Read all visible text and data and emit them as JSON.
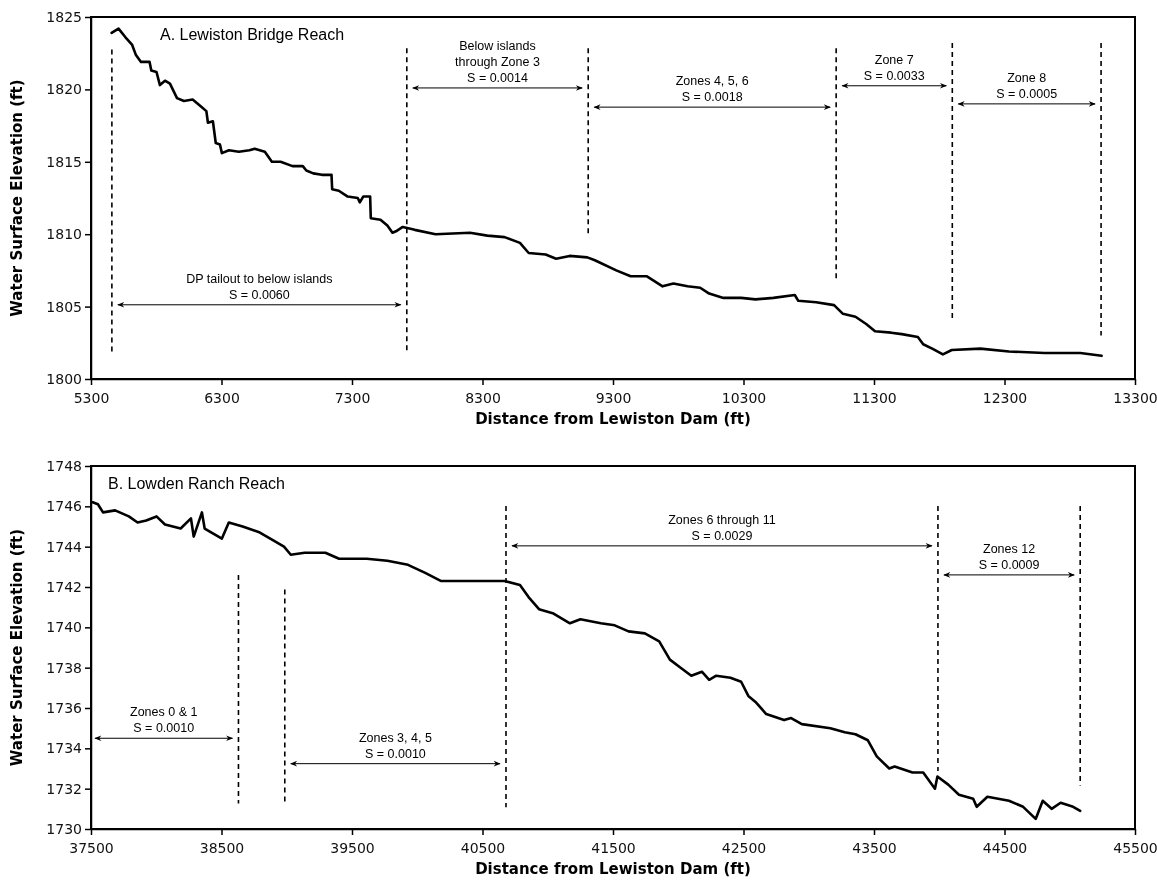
{
  "chart_data": [
    {
      "type": "line",
      "title": "A. Lewiston Bridge Reach",
      "xlabel": "Distance from Lewiston Dam (ft)",
      "ylabel": "Water Surface Elevation (ft)",
      "xlim": [
        5300,
        13300
      ],
      "xticks": [
        5300,
        6300,
        7300,
        8300,
        9300,
        10300,
        11300,
        12300,
        13300
      ],
      "ylim": [
        1800,
        1825
      ],
      "yticks": [
        1800,
        1805,
        1810,
        1815,
        1820,
        1825
      ],
      "grid": false,
      "marker": "none",
      "line_style": "solid",
      "series": [
        {
          "color": "#000000",
          "x": [
            5458,
            5511,
            5564,
            5614,
            5643,
            5683,
            5749,
            5762,
            5802,
            5828,
            5867,
            5905,
            5959,
            6012,
            6079,
            6145,
            6184,
            6196,
            6234,
            6256,
            6288,
            6303,
            6357,
            6433,
            6514,
            6554,
            6632,
            6686,
            6753,
            6844,
            6923,
            6950,
            7003,
            7069,
            7143,
            7148,
            7199,
            7267,
            7344,
            7360,
            7386,
            7439,
            7444,
            7518,
            7571,
            7610,
            7637,
            7689,
            7781,
            7940,
            8204,
            8337,
            8469,
            8587,
            8654,
            8784,
            8864,
            8968,
            9103,
            9161,
            9325,
            9435,
            9557,
            9680,
            9763,
            9871,
            9968,
            10037,
            10146,
            10282,
            10392,
            10529,
            10693,
            10720,
            10857,
            10994,
            11062,
            11158,
            11240,
            11308,
            11431,
            11513,
            11636,
            11677,
            11746,
            11828,
            11896,
            12115,
            12334,
            12607,
            12881,
            13044
          ],
          "values": [
            1823.9,
            1824.2,
            1823.6,
            1823.1,
            1822.4,
            1821.9,
            1821.9,
            1821.3,
            1821.2,
            1820.3,
            1820.6,
            1820.4,
            1819.4,
            1819.2,
            1819.3,
            1818.8,
            1818.5,
            1817.7,
            1817.8,
            1816.3,
            1816.2,
            1815.6,
            1815.8,
            1815.7,
            1815.8,
            1815.9,
            1815.7,
            1815.0,
            1815.0,
            1814.7,
            1814.7,
            1814.4,
            1814.2,
            1814.1,
            1814.1,
            1813.1,
            1813.0,
            1812.6,
            1812.5,
            1812.2,
            1812.6,
            1812.6,
            1811.1,
            1811.0,
            1810.6,
            1810.1,
            1810.2,
            1810.5,
            1810.3,
            1810.0,
            1810.1,
            1809.9,
            1809.8,
            1809.4,
            1808.7,
            1808.6,
            1808.3,
            1808.5,
            1808.4,
            1808.2,
            1807.5,
            1807.1,
            1807.1,
            1806.4,
            1806.6,
            1806.4,
            1806.3,
            1805.9,
            1805.6,
            1805.6,
            1805.5,
            1805.6,
            1805.8,
            1805.4,
            1805.3,
            1805.1,
            1804.5,
            1804.3,
            1803.8,
            1803.3,
            1803.2,
            1803.1,
            1802.9,
            1802.4,
            1802.1,
            1801.7,
            1802.0,
            1802.1,
            1801.9,
            1801.8,
            1801.8,
            1801.6
          ]
        }
      ],
      "ref_lines": [
        {
          "axis": "x",
          "value": 5460,
          "line_style": "dashed"
        },
        {
          "axis": "x",
          "value": 7720,
          "line_style": "dashed"
        },
        {
          "axis": "x",
          "value": 9110,
          "line_style": "dashed"
        },
        {
          "axis": "x",
          "value": 11010,
          "line_style": "dashed"
        },
        {
          "axis": "x",
          "value": 11900,
          "line_style": "dashed"
        },
        {
          "axis": "x",
          "value": 13040,
          "line_style": "dashed"
        }
      ],
      "annotations": [
        "DP tailout to below islands\nS = 0.0060",
        "Below islands\nthrough Zone 3\nS = 0.0014",
        "Zones 4, 5, 6\nS = 0.0018",
        "Zone 7\nS = 0.0033",
        "Zone 8\nS = 0.0005"
      ]
    },
    {
      "type": "line",
      "title": "B. Lowden Ranch Reach",
      "xlabel": "Distance from Lewiston Dam (ft)",
      "ylabel": "Water Surface Elevation (ft)",
      "xlim": [
        37500,
        45500
      ],
      "xticks": [
        37500,
        38500,
        39500,
        40500,
        41500,
        42500,
        43500,
        44500,
        45500
      ],
      "ylim": [
        1730,
        1748
      ],
      "yticks": [
        1730,
        1732,
        1734,
        1736,
        1738,
        1740,
        1742,
        1744,
        1746,
        1748
      ],
      "grid": false,
      "marker": "none",
      "line_style": "solid",
      "series": [
        {
          "color": "#000000",
          "x": [
            37513,
            37553,
            37592,
            37685,
            37790,
            37857,
            37923,
            38002,
            38067,
            38187,
            38266,
            38287,
            38350,
            38371,
            38503,
            38556,
            38662,
            38794,
            38900,
            38979,
            39031,
            39137,
            39296,
            39401,
            39613,
            39771,
            39929,
            40061,
            40180,
            40299,
            40510,
            40668,
            40787,
            40853,
            40933,
            41038,
            41170,
            41250,
            41407,
            41513,
            41619,
            41744,
            41854,
            41936,
            42018,
            42100,
            42181,
            42237,
            42291,
            42400,
            42482,
            42537,
            42592,
            42674,
            42811,
            42865,
            42947,
            43166,
            43276,
            43358,
            43453,
            43521,
            43617,
            43658,
            43795,
            43877,
            43967,
            43986,
            44069,
            44151,
            44260,
            44287,
            44369,
            44534,
            44643,
            44739,
            44793,
            44861,
            44930,
            45026,
            45080
          ],
          "values": [
            1746.2,
            1746.1,
            1745.7,
            1745.8,
            1745.5,
            1745.2,
            1745.3,
            1745.5,
            1745.1,
            1744.9,
            1745.4,
            1744.5,
            1745.7,
            1744.9,
            1744.4,
            1745.2,
            1745.0,
            1744.7,
            1744.3,
            1744.0,
            1743.6,
            1743.7,
            1743.7,
            1743.4,
            1743.4,
            1743.3,
            1743.1,
            1742.7,
            1742.3,
            1742.3,
            1742.3,
            1742.3,
            1742.1,
            1741.5,
            1740.9,
            1740.7,
            1740.2,
            1740.4,
            1740.2,
            1740.1,
            1739.8,
            1739.7,
            1739.3,
            1738.4,
            1738.0,
            1737.6,
            1737.8,
            1737.4,
            1737.6,
            1737.5,
            1737.3,
            1736.6,
            1736.3,
            1735.7,
            1735.4,
            1735.5,
            1735.2,
            1735.0,
            1734.8,
            1734.7,
            1734.4,
            1733.6,
            1733.0,
            1733.1,
            1732.8,
            1732.8,
            1732.0,
            1732.6,
            1732.2,
            1731.7,
            1731.5,
            1731.1,
            1731.6,
            1731.4,
            1731.1,
            1730.5,
            1731.4,
            1731.0,
            1731.3,
            1731.1,
            1730.9
          ]
        }
      ],
      "ref_lines": [
        {
          "axis": "x",
          "value": 38630,
          "line_style": "dashed"
        },
        {
          "axis": "x",
          "value": 38985,
          "line_style": "dashed"
        },
        {
          "axis": "x",
          "value": 40680,
          "line_style": "dashed"
        },
        {
          "axis": "x",
          "value": 43990,
          "line_style": "dashed"
        },
        {
          "axis": "x",
          "value": 45080,
          "line_style": "dashed"
        }
      ],
      "annotations": [
        "Zones 0 & 1\nS = 0.0010",
        "Zones 3, 4, 5\nS = 0.0010",
        "Zones 6 through 11\nS = 0.0029",
        "Zones 12\nS = 0.0009"
      ]
    }
  ]
}
